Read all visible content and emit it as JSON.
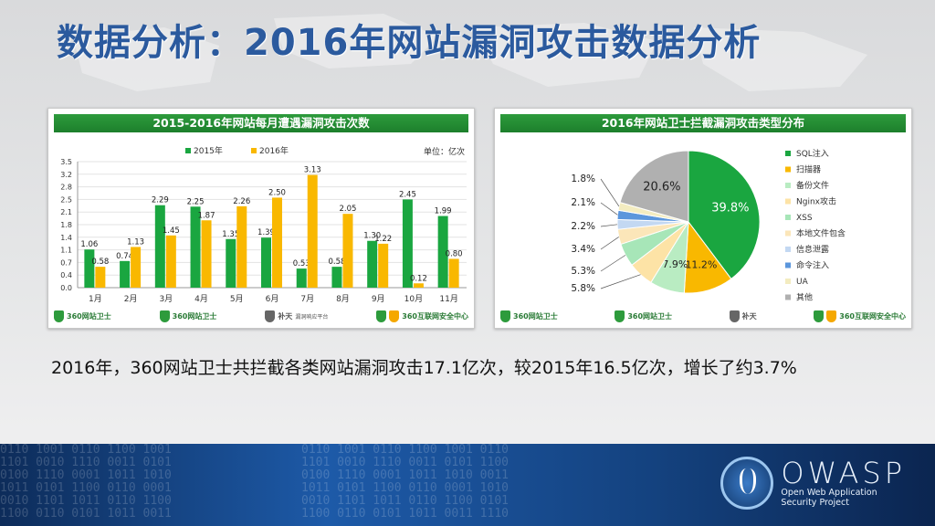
{
  "title": "数据分析：2016年网站漏洞攻击数据分析",
  "summary": "2016年，360网站卫士共拦截各类网站漏洞攻击17.1亿次，较2015年16.5亿次，增长了约3.7%",
  "chart_data": [
    {
      "type": "bar",
      "title": "2015-2016年网站每月遭遇漏洞攻击次数",
      "unit_label": "单位：亿次",
      "categories": [
        "1月",
        "2月",
        "3月",
        "4月",
        "5月",
        "6月",
        "7月",
        "8月",
        "9月",
        "10月",
        "11月"
      ],
      "series": [
        {
          "name": "2015年",
          "color": "#1aa640",
          "values": [
            1.06,
            0.74,
            2.29,
            2.25,
            1.35,
            1.39,
            0.53,
            0.58,
            1.3,
            2.45,
            1.99
          ]
        },
        {
          "name": "2016年",
          "color": "#f9b800",
          "values": [
            0.58,
            1.13,
            1.45,
            1.87,
            2.26,
            2.5,
            3.13,
            2.05,
            1.22,
            0.12,
            0.8
          ]
        }
      ],
      "ylim": [
        0,
        3.5
      ],
      "yticks": [
        "0.0",
        "0.4",
        "0.7",
        "1.1",
        "1.4",
        "1.8",
        "2.1",
        "2.5",
        "2.8",
        "3.2",
        "3.5"
      ],
      "legend": "top",
      "grid": true
    },
    {
      "type": "pie",
      "title": "2016年网站卫士拦截漏洞攻击类型分布",
      "legend": "right",
      "slices": [
        {
          "label": "SQL注入",
          "value": 39.8,
          "display": "39.8%",
          "color": "#1aa640"
        },
        {
          "label": "扫描器",
          "value": 11.2,
          "display": "11.2%",
          "color": "#f9b800"
        },
        {
          "label": "备份文件",
          "value": 7.9,
          "display": "7.9%",
          "color": "#b9ecc2"
        },
        {
          "label": "Nginx攻击",
          "value": 5.8,
          "display": "5.8%",
          "color": "#fde3a6"
        },
        {
          "label": "XSS",
          "value": 5.3,
          "display": "5.3%",
          "color": "#a7e6b8"
        },
        {
          "label": "本地文件包含",
          "value": 3.4,
          "display": "3.4%",
          "color": "#fbe6b9"
        },
        {
          "label": "信息泄露",
          "value": 2.2,
          "display": "2.2%",
          "color": "#c3d8f2"
        },
        {
          "label": "命令注入",
          "value": 2.1,
          "display": "2.1%",
          "color": "#5b96dc"
        },
        {
          "label": "UA",
          "value": 1.8,
          "display": "1.8%",
          "color": "#f3ecc0"
        },
        {
          "label": "其他",
          "value": 20.6,
          "display": "20.6%",
          "color": "#b0b0b0"
        }
      ]
    }
  ],
  "logos": {
    "site_guard_a": "360网站卫士",
    "site_guard_b": "360网站卫士",
    "butian": "补天",
    "butian_sub": "漏洞响应平台",
    "security_center": "360互联网安全中心",
    "icon_names": [
      "shield-icon",
      "cross-shield-icon",
      "star-emblem-icon"
    ]
  },
  "footer": {
    "brand": "OWASP",
    "subtitle_line1": "Open Web Application",
    "subtitle_line2": "Security Project"
  }
}
